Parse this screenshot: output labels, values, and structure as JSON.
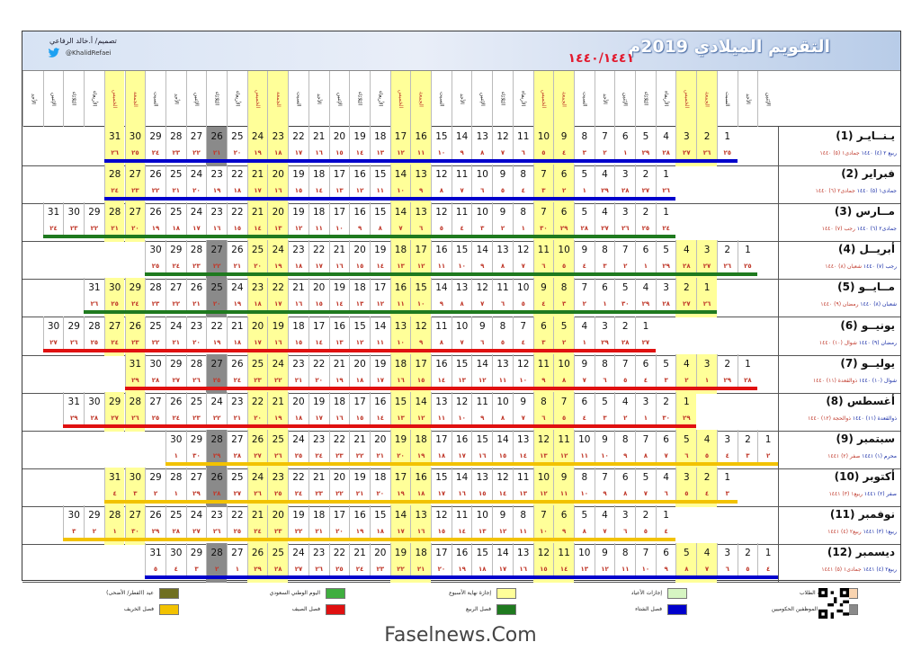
{
  "title": "التقويم الميلادي 2019م",
  "hijri_title": "١٤٤٠/١٤٤١",
  "designer": "تصميم/ أ.خالد الرفاعي",
  "handle": "@KhalidRefaei",
  "footer": "Faselnews.Com",
  "colors": {
    "banner": "#c9d8ee",
    "red": "#e21a2e",
    "navy": "#1a2fa8",
    "weekend": "#ffff99",
    "emp": "#8a8a8a",
    "school_hol": "#f9d4b0",
    "eid_hol": "#d6f5c2",
    "national": "#3fae3f",
    "eid": "#707021",
    "winter": "#0000cc",
    "spring": "#1f7a1f",
    "summer": "#e01010",
    "autumn": "#f2c200"
  },
  "day_names": [
    "الإثنين",
    "الأحد",
    "السبت",
    "الجمعة",
    "الخميس",
    "الأربعاء",
    "الثلاثاء",
    "الإثنين",
    "الأحد",
    "السبت",
    "الجمعة",
    "الخميس",
    "الأربعاء",
    "الثلاثاء",
    "الإثنين",
    "الأحد",
    "السبت",
    "الجمعة",
    "الخميس",
    "الأربعاء",
    "الثلاثاء",
    "الإثنين",
    "الأحد",
    "السبت",
    "الجمعة",
    "الخميس",
    "الأربعاء",
    "الثلاثاء",
    "الإثنين",
    "الأحد",
    "السبت",
    "الجمعة",
    "الخميس",
    "الأربعاء",
    "الثلاثاء",
    "الإثنين",
    "الأحد"
  ],
  "months": [
    {
      "name": "يـنــايـر (1)",
      "hijri_a": "ربيع ٢ (٤) ١٤٤٠",
      "hijri_b": "جمادى١ (٥) ١٤٤٠",
      "start_col": 2,
      "days": 31,
      "hijri_start": 25,
      "hijri_len": 29,
      "season": "winter"
    },
    {
      "name": "فبراير (2)",
      "hijri_a": "جمادى١ (٥) ١٤٤٠",
      "hijri_b": "جمادى٢ (٦) ١٤٤٠",
      "start_col": 5,
      "days": 28,
      "hijri_start": 26,
      "hijri_len": 29,
      "season": "winter"
    },
    {
      "name": "مــارس (3)",
      "hijri_a": "جمادى٢ (٦) ١٤٤٠",
      "hijri_b": "رجب (٧) ١٤٤٠",
      "start_col": 5,
      "days": 31,
      "hijri_start": 24,
      "hijri_len": 30,
      "season": "spring"
    },
    {
      "name": "أبريــل (4)",
      "hijri_a": "رجب (٧) ١٤٤٠",
      "hijri_b": "شعبان (٨) ١٤٤٠",
      "start_col": 1,
      "days": 30,
      "hijri_start": 25,
      "hijri_len": 29,
      "season": "spring"
    },
    {
      "name": "مــايــو (5)",
      "hijri_a": "شعبان (٨) ١٤٤٠",
      "hijri_b": "رمضان (٩) ١٤٤٠",
      "start_col": 3,
      "days": 31,
      "hijri_start": 26,
      "hijri_len": 30,
      "season": "spring"
    },
    {
      "name": "يونيــو (6)",
      "hijri_a": "رمضان (٩) ١٤٤٠",
      "hijri_b": "شوال (١٠) ١٤٤٠",
      "start_col": 6,
      "days": 30,
      "hijri_start": 27,
      "hijri_len": 29,
      "season": "summer"
    },
    {
      "name": "يوليــو (7)",
      "hijri_a": "شوال (١٠) ١٤٤٠",
      "hijri_b": "ذوالقعدة (١١) ١٤٤٠",
      "start_col": 1,
      "days": 31,
      "hijri_start": 28,
      "hijri_len": 29,
      "season": "summer"
    },
    {
      "name": "أغسطس (8)",
      "hijri_a": "ذوالقعدة (١١) ١٤٤٠",
      "hijri_b": "ذوالحجة (١٢) ١٤٤٠",
      "start_col": 4,
      "days": 31,
      "hijri_start": 29,
      "hijri_len": 30,
      "season": "summer"
    },
    {
      "name": "سبتمبر (9)",
      "hijri_a": "محرم (١) ١٤٤١",
      "hijri_b": "صفر (٢) ١٤٤١",
      "start_col": 0,
      "days": 30,
      "hijri_start": 2,
      "hijri_len": 30,
      "season": "autumn"
    },
    {
      "name": "أكتوبر (10)",
      "hijri_a": "صفر (٢) ١٤٤١",
      "hijri_b": "ربيع١ (٣) ١٤٤١",
      "start_col": 2,
      "days": 31,
      "hijri_start": 3,
      "hijri_len": 29,
      "season": "autumn"
    },
    {
      "name": "نوفمبر (11)",
      "hijri_a": "ربيع١ (٣) ١٤٤١",
      "hijri_b": "ربيع٢ (٤) ١٤٤١",
      "start_col": 5,
      "days": 30,
      "hijri_start": 4,
      "hijri_len": 30,
      "season": "autumn"
    },
    {
      "name": "ديسمبر (12)",
      "hijri_a": "ربيع٢ (٤) ١٤٤١",
      "hijri_b": "جمادى١ (٥) ١٤٤١",
      "start_col": 0,
      "days": 31,
      "hijri_start": 4,
      "hijri_len": 29,
      "season": "winter"
    }
  ],
  "legend": [
    {
      "label": "إجازات الطلاب",
      "color": "#f9d4b0"
    },
    {
      "label": "إجازات الأعياد",
      "color": "#d6f5c2"
    },
    {
      "label": "إجازة نهاية الأسبوع",
      "color": "#ffff99"
    },
    {
      "label": "اليوم الوطني السعودي",
      "color": "#3fae3f"
    },
    {
      "label": "عيد (الفطر/ الأضحى)",
      "color": "#707021"
    },
    {
      "label": "رواتب الموظفين الحكوميين",
      "color": "#8a8a8a"
    },
    {
      "label": "فصل الشتاء",
      "color": "#0000cc"
    },
    {
      "label": "فصل الربيع",
      "color": "#1f7a1f"
    },
    {
      "label": "فصل الصيف",
      "color": "#e01010"
    },
    {
      "label": "فصل الخريف",
      "color": "#f2c200"
    }
  ]
}
